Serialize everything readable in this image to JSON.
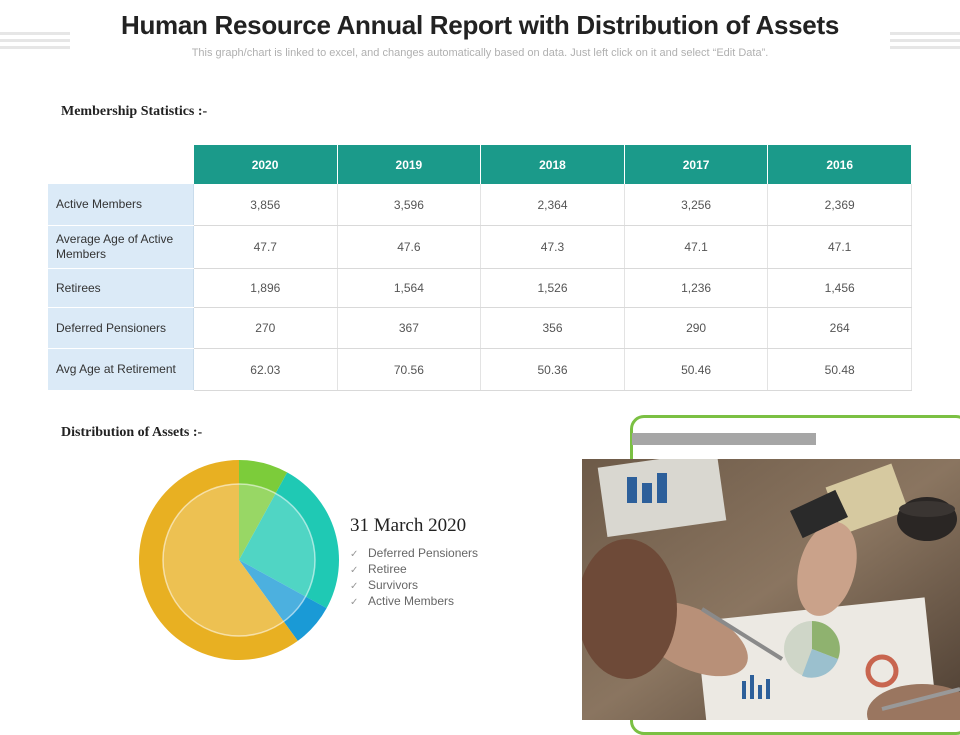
{
  "header": {
    "title": "Human Resource Annual Report with Distribution of Assets",
    "subtitle": "This graph/chart is linked to excel, and changes automatically based on data. Just left click on it and select “Edit Data”."
  },
  "membership": {
    "heading": "Membership Statistics :-",
    "columns": [
      "2020",
      "2019",
      "2018",
      "2017",
      "2016"
    ],
    "rows": [
      {
        "label": "Active Members",
        "values": [
          "3,856",
          "3,596",
          "2,364",
          "3,256",
          "2,369"
        ]
      },
      {
        "label": "Average  Age of Active Members",
        "values": [
          "47.7",
          "47.6",
          "47.3",
          "47.1",
          "47.1"
        ]
      },
      {
        "label": "Retirees",
        "values": [
          "1,896",
          "1,564",
          "1,526",
          "1,236",
          "1,456"
        ]
      },
      {
        "label": "Deferred  Pensioners",
        "values": [
          "270",
          "367",
          "356",
          "290",
          "264"
        ]
      },
      {
        "label": "Avg Age at Retirement",
        "values": [
          "62.03",
          "70.56",
          "50.36",
          "50.46",
          "50.48"
        ]
      }
    ]
  },
  "assets": {
    "heading": "Distribution of Assets :-",
    "date": "31 March 2020",
    "legend": [
      "Deferred  Pensioners",
      "Retiree",
      "Survivors",
      "Active Members"
    ]
  },
  "chart_data": {
    "type": "pie",
    "categories": [
      "Deferred  Pensioners",
      "Retiree",
      "Survivors",
      "Active Members"
    ],
    "values": [
      8,
      25,
      7,
      60
    ],
    "colors": [
      "#7ccc3a",
      "#1fc9b4",
      "#1a9ad6",
      "#e8b022"
    ]
  },
  "colors": {
    "table_header": "#1b9a8a",
    "row_label_bg": "#dbeaf7",
    "frame_green": "#7bc043"
  },
  "icons": {
    "legend_check": "check-icon"
  }
}
